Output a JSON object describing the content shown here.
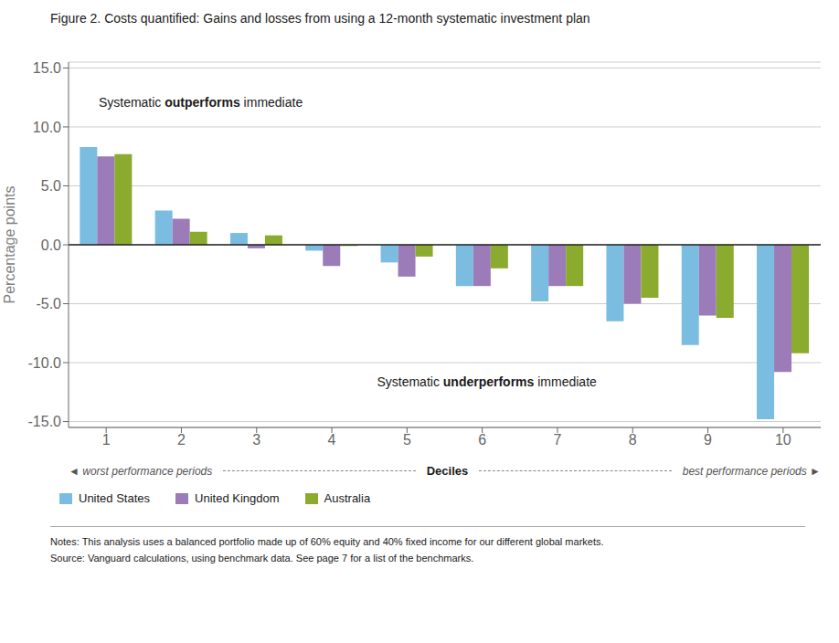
{
  "chart_data": {
    "type": "bar",
    "title": "Figure 2. Costs quantified: Gains and losses from using a 12-month systematic investment plan",
    "ylabel": "Percentage points",
    "xlabel": "Deciles",
    "categories": [
      "1",
      "2",
      "3",
      "4",
      "5",
      "6",
      "7",
      "8",
      "9",
      "10"
    ],
    "series": [
      {
        "name": "United States",
        "color": "#7bbde0",
        "values": [
          8.3,
          2.9,
          1.0,
          -0.5,
          -1.5,
          -3.5,
          -4.8,
          -6.5,
          -8.5,
          -14.8
        ]
      },
      {
        "name": "United Kingdom",
        "color": "#9b7bb8",
        "values": [
          7.5,
          2.2,
          -0.3,
          -1.8,
          -2.7,
          -3.5,
          -3.5,
          -5.0,
          -6.0,
          -10.8
        ]
      },
      {
        "name": "Australia",
        "color": "#8aab2e",
        "values": [
          7.7,
          1.1,
          0.8,
          -0.1,
          -1.0,
          -2.0,
          -3.5,
          -4.5,
          -6.2,
          -9.2
        ]
      }
    ],
    "ylim": [
      -15.5,
      15.5
    ],
    "yticks": [
      {
        "value": -15,
        "label": "-15.0"
      },
      {
        "value": -10,
        "label": "-10.0"
      },
      {
        "value": -5,
        "label": "-5.0"
      },
      {
        "value": 0,
        "label": "0.0"
      },
      {
        "value": 5,
        "label": "5.0"
      },
      {
        "value": 10,
        "label": "10.0"
      },
      {
        "value": 15,
        "label": "15.0"
      }
    ],
    "grid": true,
    "legend": "bottom",
    "annotations": [
      "Systematic outperforms immediate",
      "Systematic underperforms immediate",
      "◄ worst performance periods",
      "best performance periods ►",
      "Notes: This analysis uses a balanced portfolio made up of 60% equity and 40% fixed income for our different global markets.",
      "Source: Vanguard calculations, using benchmark data. See page 7 for a list of the benchmarks."
    ]
  }
}
